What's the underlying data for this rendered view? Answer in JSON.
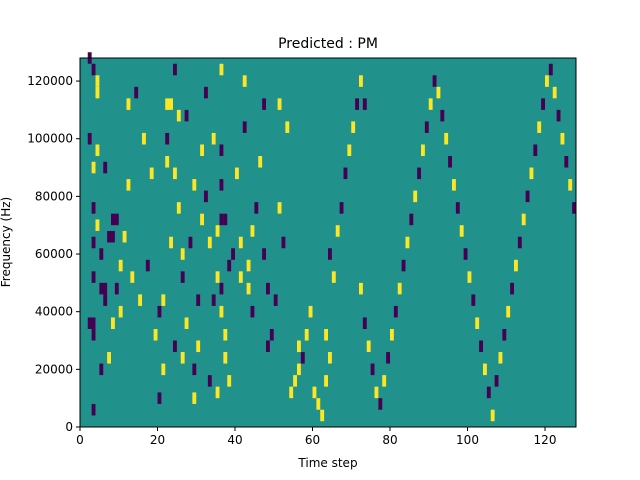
{
  "chart_data": {
    "type": "heatmap",
    "title": "Predicted : PM",
    "xlabel": "Time step",
    "ylabel": "Frequency (Hz)",
    "xlim": [
      0,
      128
    ],
    "ylim": [
      0,
      128000
    ],
    "xticks": [
      0,
      20,
      40,
      60,
      80,
      100,
      120
    ],
    "yticks": [
      0,
      20000,
      40000,
      60000,
      80000,
      100000,
      120000
    ],
    "xtick_labels": [
      "0",
      "20",
      "40",
      "60",
      "80",
      "100",
      "120"
    ],
    "ytick_labels": [
      "0",
      "20000",
      "40000",
      "60000",
      "80000",
      "100000",
      "120000"
    ],
    "grid": false,
    "colors": {
      "background": "#21918c",
      "low": "#440154",
      "high": "#fde725"
    },
    "cells": [
      [
        2,
        126000,
        1,
        4000,
        "low"
      ],
      [
        3,
        122000,
        1,
        4000,
        "low"
      ],
      [
        4,
        118000,
        1,
        4000,
        "high"
      ],
      [
        4,
        114000,
        1,
        4000,
        "high"
      ],
      [
        2,
        98000,
        1,
        4000,
        "low"
      ],
      [
        4,
        94000,
        1,
        4000,
        "high"
      ],
      [
        3,
        88000,
        1,
        4000,
        "high"
      ],
      [
        3,
        74000,
        1,
        4000,
        "low"
      ],
      [
        4,
        68000,
        1,
        4000,
        "high"
      ],
      [
        3,
        62000,
        1,
        4000,
        "low"
      ],
      [
        5,
        58000,
        1,
        4000,
        "low"
      ],
      [
        3,
        50000,
        1,
        4000,
        "low"
      ],
      [
        5,
        46000,
        2,
        4000,
        "low"
      ],
      [
        6,
        42000,
        1,
        4000,
        "low"
      ],
      [
        2,
        34000,
        2,
        4000,
        "low"
      ],
      [
        3,
        30000,
        1,
        4000,
        "low"
      ],
      [
        5,
        18000,
        1,
        4000,
        "low"
      ],
      [
        3,
        4000,
        1,
        4000,
        "low"
      ],
      [
        7,
        64000,
        2,
        4000,
        "low"
      ],
      [
        8,
        70000,
        2,
        4000,
        "low"
      ],
      [
        6,
        88000,
        1,
        4000,
        "low"
      ],
      [
        7,
        22000,
        1,
        4000,
        "high"
      ],
      [
        8,
        34000,
        1,
        4000,
        "high"
      ],
      [
        9,
        46000,
        1,
        4000,
        "low"
      ],
      [
        10,
        54000,
        1,
        4000,
        "high"
      ],
      [
        10,
        38000,
        1,
        4000,
        "high"
      ],
      [
        11,
        64000,
        1,
        4000,
        "high"
      ],
      [
        12,
        110000,
        1,
        4000,
        "high"
      ],
      [
        12,
        82000,
        1,
        4000,
        "high"
      ],
      [
        13,
        50000,
        1,
        4000,
        "high"
      ],
      [
        14,
        114000,
        1,
        4000,
        "low"
      ],
      [
        15,
        42000,
        1,
        4000,
        "high"
      ],
      [
        16,
        98000,
        1,
        4000,
        "high"
      ],
      [
        17,
        54000,
        1,
        4000,
        "low"
      ],
      [
        18,
        86000,
        1,
        4000,
        "high"
      ],
      [
        19,
        30000,
        1,
        4000,
        "high"
      ],
      [
        20,
        38000,
        1,
        4000,
        "low"
      ],
      [
        20,
        8000,
        1,
        4000,
        "low"
      ],
      [
        21,
        18000,
        1,
        4000,
        "high"
      ],
      [
        21,
        42000,
        1,
        4000,
        "high"
      ],
      [
        22,
        90000,
        1,
        4000,
        "high"
      ],
      [
        22,
        98000,
        1,
        4000,
        "low"
      ],
      [
        22,
        110000,
        2,
        4000,
        "high"
      ],
      [
        23,
        62000,
        1,
        4000,
        "high"
      ],
      [
        24,
        26000,
        1,
        4000,
        "low"
      ],
      [
        24,
        86000,
        1,
        4000,
        "high"
      ],
      [
        24,
        122000,
        1,
        4000,
        "low"
      ],
      [
        25,
        74000,
        1,
        4000,
        "high"
      ],
      [
        25,
        106000,
        1,
        4000,
        "high"
      ],
      [
        26,
        50000,
        1,
        4000,
        "low"
      ],
      [
        26,
        58000,
        1,
        4000,
        "high"
      ],
      [
        26,
        22000,
        1,
        4000,
        "high"
      ],
      [
        27,
        34000,
        1,
        4000,
        "high"
      ],
      [
        27,
        106000,
        1,
        4000,
        "low"
      ],
      [
        28,
        62000,
        1,
        4000,
        "low"
      ],
      [
        29,
        82000,
        1,
        4000,
        "high"
      ],
      [
        29,
        18000,
        1,
        4000,
        "low"
      ],
      [
        29,
        8000,
        1,
        4000,
        "high"
      ],
      [
        30,
        42000,
        1,
        4000,
        "low"
      ],
      [
        30,
        26000,
        1,
        4000,
        "high"
      ],
      [
        31,
        70000,
        1,
        4000,
        "high"
      ],
      [
        31,
        94000,
        1,
        4000,
        "high"
      ],
      [
        32,
        114000,
        1,
        4000,
        "low"
      ],
      [
        32,
        78000,
        1,
        4000,
        "low"
      ],
      [
        33,
        62000,
        1,
        4000,
        "high"
      ],
      [
        33,
        14000,
        1,
        4000,
        "low"
      ],
      [
        34,
        98000,
        1,
        4000,
        "high"
      ],
      [
        34,
        42000,
        1,
        4000,
        "low"
      ],
      [
        35,
        66000,
        1,
        4000,
        "high"
      ],
      [
        35,
        10000,
        1,
        4000,
        "high"
      ],
      [
        36,
        82000,
        1,
        4000,
        "low"
      ],
      [
        36,
        38000,
        1,
        4000,
        "high"
      ],
      [
        36,
        70000,
        1,
        4000,
        "low"
      ],
      [
        36,
        94000,
        1,
        4000,
        "low"
      ],
      [
        37,
        70000,
        1,
        4000,
        "low"
      ],
      [
        37,
        22000,
        1,
        4000,
        "high"
      ],
      [
        36,
        122000,
        1,
        4000,
        "high"
      ],
      [
        35,
        50000,
        1,
        4000,
        "high"
      ],
      [
        36,
        46000,
        1,
        4000,
        "low"
      ],
      [
        37,
        30000,
        1,
        4000,
        "high"
      ],
      [
        38,
        54000,
        1,
        4000,
        "low"
      ],
      [
        38,
        14000,
        1,
        4000,
        "high"
      ],
      [
        39,
        58000,
        1,
        4000,
        "low"
      ],
      [
        40,
        86000,
        1,
        4000,
        "high"
      ],
      [
        41,
        62000,
        1,
        4000,
        "high"
      ],
      [
        41,
        50000,
        1,
        4000,
        "high"
      ],
      [
        42,
        102000,
        1,
        4000,
        "low"
      ],
      [
        42,
        118000,
        1,
        4000,
        "high"
      ],
      [
        43,
        46000,
        1,
        4000,
        "high"
      ],
      [
        43,
        54000,
        1,
        4000,
        "high"
      ],
      [
        44,
        66000,
        1,
        4000,
        "high"
      ],
      [
        44,
        38000,
        1,
        4000,
        "low"
      ],
      [
        45,
        74000,
        1,
        4000,
        "low"
      ],
      [
        46,
        90000,
        1,
        4000,
        "high"
      ],
      [
        47,
        110000,
        1,
        4000,
        "low"
      ],
      [
        47,
        58000,
        1,
        4000,
        "low"
      ],
      [
        48,
        46000,
        1,
        4000,
        "low"
      ],
      [
        48,
        26000,
        1,
        4000,
        "low"
      ],
      [
        49,
        30000,
        1,
        4000,
        "low"
      ],
      [
        50,
        42000,
        1,
        4000,
        "low"
      ],
      [
        51,
        110000,
        1,
        4000,
        "high"
      ],
      [
        51,
        74000,
        1,
        4000,
        "high"
      ],
      [
        52,
        62000,
        1,
        4000,
        "low"
      ],
      [
        53,
        102000,
        1,
        4000,
        "high"
      ],
      [
        54,
        10000,
        1,
        4000,
        "high"
      ],
      [
        55,
        14000,
        1,
        4000,
        "high"
      ],
      [
        56,
        18000,
        1,
        4000,
        "high"
      ],
      [
        56,
        26000,
        1,
        4000,
        "high"
      ],
      [
        57,
        22000,
        1,
        4000,
        "low"
      ],
      [
        58,
        30000,
        1,
        4000,
        "high"
      ],
      [
        59,
        38000,
        1,
        4000,
        "high"
      ],
      [
        60,
        10000,
        1,
        4000,
        "high"
      ],
      [
        61,
        6000,
        1,
        4000,
        "high"
      ],
      [
        62,
        2000,
        1,
        4000,
        "high"
      ],
      [
        63,
        14000,
        1,
        4000,
        "high"
      ],
      [
        64,
        22000,
        1,
        4000,
        "high"
      ],
      [
        63,
        30000,
        1,
        4000,
        "high"
      ],
      [
        64,
        58000,
        1,
        4000,
        "low"
      ],
      [
        65,
        50000,
        1,
        4000,
        "high"
      ],
      [
        66,
        66000,
        1,
        4000,
        "high"
      ],
      [
        67,
        74000,
        1,
        4000,
        "low"
      ],
      [
        68,
        86000,
        1,
        4000,
        "low"
      ],
      [
        69,
        94000,
        1,
        4000,
        "high"
      ],
      [
        70,
        102000,
        1,
        4000,
        "high"
      ],
      [
        71,
        110000,
        1,
        4000,
        "low"
      ],
      [
        72,
        118000,
        1,
        4000,
        "high"
      ],
      [
        73,
        110000,
        1,
        4000,
        "low"
      ],
      [
        72,
        46000,
        1,
        4000,
        "high"
      ],
      [
        73,
        34000,
        1,
        4000,
        "low"
      ],
      [
        74,
        26000,
        1,
        4000,
        "high"
      ],
      [
        75,
        18000,
        1,
        4000,
        "low"
      ],
      [
        76,
        10000,
        1,
        4000,
        "high"
      ],
      [
        77,
        6000,
        1,
        4000,
        "low"
      ],
      [
        78,
        14000,
        1,
        4000,
        "high"
      ],
      [
        79,
        22000,
        1,
        4000,
        "low"
      ],
      [
        80,
        30000,
        1,
        4000,
        "high"
      ],
      [
        81,
        38000,
        1,
        4000,
        "low"
      ],
      [
        82,
        46000,
        1,
        4000,
        "high"
      ],
      [
        83,
        54000,
        1,
        4000,
        "low"
      ],
      [
        84,
        62000,
        1,
        4000,
        "high"
      ],
      [
        85,
        70000,
        1,
        4000,
        "low"
      ],
      [
        86,
        78000,
        1,
        4000,
        "high"
      ],
      [
        87,
        86000,
        1,
        4000,
        "low"
      ],
      [
        88,
        94000,
        1,
        4000,
        "high"
      ],
      [
        89,
        102000,
        1,
        4000,
        "low"
      ],
      [
        90,
        110000,
        1,
        4000,
        "high"
      ],
      [
        91,
        118000,
        1,
        4000,
        "low"
      ],
      [
        92,
        114000,
        1,
        4000,
        "high"
      ],
      [
        93,
        106000,
        1,
        4000,
        "low"
      ],
      [
        94,
        98000,
        1,
        4000,
        "high"
      ],
      [
        95,
        90000,
        1,
        4000,
        "low"
      ],
      [
        96,
        82000,
        1,
        4000,
        "high"
      ],
      [
        97,
        74000,
        1,
        4000,
        "low"
      ],
      [
        98,
        66000,
        1,
        4000,
        "high"
      ],
      [
        99,
        58000,
        1,
        4000,
        "low"
      ],
      [
        100,
        50000,
        1,
        4000,
        "high"
      ],
      [
        101,
        42000,
        1,
        4000,
        "low"
      ],
      [
        102,
        34000,
        1,
        4000,
        "high"
      ],
      [
        103,
        26000,
        1,
        4000,
        "low"
      ],
      [
        104,
        18000,
        1,
        4000,
        "high"
      ],
      [
        105,
        10000,
        1,
        4000,
        "low"
      ],
      [
        106,
        2000,
        1,
        4000,
        "high"
      ],
      [
        107,
        14000,
        1,
        4000,
        "low"
      ],
      [
        108,
        22000,
        1,
        4000,
        "high"
      ],
      [
        109,
        30000,
        1,
        4000,
        "low"
      ],
      [
        110,
        38000,
        1,
        4000,
        "high"
      ],
      [
        111,
        46000,
        1,
        4000,
        "low"
      ],
      [
        112,
        54000,
        1,
        4000,
        "high"
      ],
      [
        113,
        62000,
        1,
        4000,
        "low"
      ],
      [
        114,
        70000,
        1,
        4000,
        "high"
      ],
      [
        115,
        78000,
        1,
        4000,
        "low"
      ],
      [
        116,
        86000,
        1,
        4000,
        "high"
      ],
      [
        117,
        94000,
        1,
        4000,
        "low"
      ],
      [
        118,
        102000,
        1,
        4000,
        "high"
      ],
      [
        119,
        110000,
        1,
        4000,
        "low"
      ],
      [
        120,
        118000,
        1,
        4000,
        "high"
      ],
      [
        121,
        122000,
        1,
        4000,
        "low"
      ],
      [
        122,
        114000,
        1,
        4000,
        "high"
      ],
      [
        123,
        106000,
        1,
        4000,
        "low"
      ],
      [
        124,
        98000,
        1,
        4000,
        "high"
      ],
      [
        125,
        90000,
        1,
        4000,
        "low"
      ],
      [
        126,
        82000,
        1,
        4000,
        "high"
      ],
      [
        127,
        74000,
        1,
        4000,
        "low"
      ]
    ]
  }
}
